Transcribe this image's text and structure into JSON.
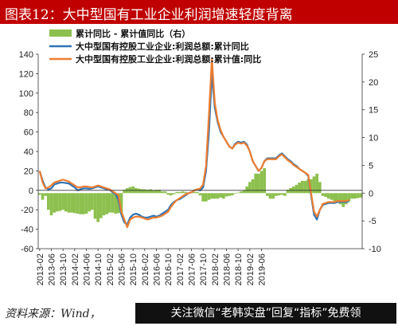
{
  "title": "图表12：大中型国有工业企业利润增速轻度背离",
  "source": "资料来源：Wind，",
  "watermark": "关注微信“老韩实盘”回复“指标”免费领",
  "colors": {
    "bar": "#8dc04e",
    "blue_line": "#2e75b6",
    "orange_line": "#ed7d31",
    "title_bg": "#c00000"
  },
  "chart_data": {
    "type": "bar+line",
    "dual_axis": true,
    "left_axis": {
      "ylim": [
        -60,
        140
      ],
      "ticks": [
        -60,
        -40,
        -20,
        0,
        20,
        40,
        60,
        80,
        100,
        120,
        140
      ]
    },
    "right_axis": {
      "ylim": [
        -10,
        25
      ],
      "ticks": [
        -10,
        -5,
        0,
        5,
        10,
        15,
        20,
        25
      ]
    },
    "x_tick_labels": [
      "2013-02",
      "2013-06",
      "2013-10",
      "2014-02",
      "2014-06",
      "2014-10",
      "2015-02",
      "2015-06",
      "2015-10",
      "2016-02",
      "2016-06",
      "2016-10",
      "2017-02",
      "2017-06",
      "2017-10",
      "2018-02",
      "2018-06",
      "2018-10",
      "2019-02",
      "2019-06"
    ],
    "grid": false,
    "legend_position": "top-left",
    "series": [
      {
        "name": "累计同比 - 累计值同比（右）",
        "type": "bar",
        "axis": "right",
        "values": [
          -0.3,
          -1.2,
          -0.5,
          -3.0,
          -4.0,
          -3.5,
          -3.3,
          -3.2,
          -3.0,
          -3.3,
          -3.5,
          -3.5,
          -3.6,
          -3.7,
          -3.8,
          -3.8,
          -3.7,
          -3.3,
          -3.0,
          -4.6,
          -5.2,
          -4.5,
          -4.0,
          -3.8,
          -3.5,
          -3.5,
          -3.7,
          -3.6,
          -3.5,
          0.6,
          0.9,
          1.1,
          1.2,
          0.9,
          0.8,
          0.7,
          0.7,
          0.6,
          0.7,
          0.5,
          0.6,
          0.6,
          0.3,
          0.3,
          -0.3,
          -0.4,
          -0.2,
          0.2,
          0.2,
          0.3,
          0.2,
          0.1,
          0.2,
          0.2,
          0.2,
          -0.4,
          -1.5,
          -1.5,
          -1.2,
          -1.0,
          -1.0,
          -1.0,
          -0.8,
          -1.0,
          -0.6,
          -0.5,
          -0.4,
          -0.1,
          0.1,
          0.3,
          0.5,
          1.2,
          2.0,
          2.5,
          3.5,
          3.5,
          4.0,
          4.5,
          -0.5,
          -1.0,
          -1.0,
          -0.5,
          -0.4,
          -0.3,
          -0.5,
          0.6,
          0.9,
          1.2,
          1.5,
          1.9,
          2.2,
          2.2,
          2.5,
          2.5,
          3.0,
          3.5,
          2.0,
          -0.5,
          -0.7,
          -1.0,
          -1.2,
          -1.4,
          -1.7,
          -2.0,
          -2.5,
          -2.0,
          -1.5,
          -1.0,
          -1.0,
          -0.9,
          -0.8
        ]
      },
      {
        "name": "大中型国有控股工业企业:利润总额:累计同比",
        "type": "line",
        "axis": "left",
        "values": [
          20,
          10,
          3,
          1,
          2,
          6,
          7,
          8,
          8,
          7.5,
          7,
          5,
          3,
          0,
          1,
          2,
          2,
          1.5,
          2,
          3,
          4,
          3,
          2,
          1,
          0.5,
          -2,
          -4,
          -10,
          -25,
          -33,
          -35,
          -28,
          -25,
          -24,
          -25,
          -27,
          -28,
          -28,
          -27,
          -26,
          -27,
          -26,
          -24,
          -22,
          -20,
          -15,
          -12,
          -10,
          -9,
          -7,
          -5,
          -3,
          -2,
          0,
          1,
          0,
          3,
          20,
          60,
          120,
          85,
          70,
          60,
          55,
          50,
          45,
          43,
          48,
          50,
          49,
          50,
          47,
          40,
          30,
          25,
          20,
          23,
          30,
          33,
          33,
          33,
          33,
          36,
          38,
          35,
          32,
          30,
          27,
          25,
          22,
          20,
          18,
          15,
          -5,
          -25,
          -30,
          -20,
          -15,
          -14,
          -13,
          -13,
          -13,
          -12,
          -12,
          -12,
          -12,
          -11
        ]
      },
      {
        "name": "大中型国有控股工业企业:利润总额:累计值:同比",
        "type": "line",
        "axis": "left",
        "values": [
          20,
          8,
          2,
          3,
          5,
          8,
          9,
          10,
          11,
          10,
          9,
          7,
          5,
          3,
          3,
          4,
          4,
          3.5,
          3,
          4,
          5,
          4,
          3,
          2,
          1,
          -1,
          -3,
          -5,
          -22,
          -30,
          -38,
          -30,
          -28,
          -27,
          -27,
          -28,
          -29,
          -30,
          -29,
          -28,
          -28,
          -27,
          -26,
          -24,
          -22,
          -17,
          -13,
          -10,
          -8,
          -6,
          -4,
          -3,
          -2,
          0,
          1,
          2,
          6,
          25,
          78,
          135,
          90,
          72,
          62,
          55,
          50,
          45,
          43,
          47,
          49,
          48,
          49,
          46,
          40,
          30,
          25,
          20,
          23,
          30,
          32,
          32,
          32,
          32,
          35,
          37,
          34,
          31,
          29,
          26,
          24,
          22,
          20,
          18,
          16,
          -3,
          -22,
          -27,
          -20,
          -14,
          -13,
          -12,
          -12,
          -12,
          -11,
          -11,
          -11,
          -11,
          -10
        ]
      }
    ]
  }
}
